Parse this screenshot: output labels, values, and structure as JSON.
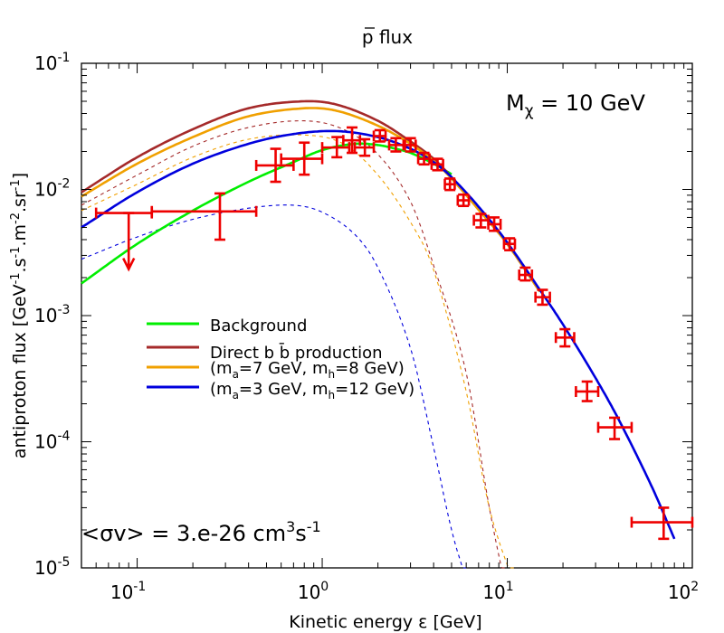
{
  "chart_data": {
    "type": "line",
    "title": "p flux",
    "title_bar_char": "p",
    "xlabel": "Kinetic energy ε [GeV]",
    "ylabel": "antiproton flux [GeV-1.s-1.m-2.sr-1]",
    "xscale": "log",
    "yscale": "log",
    "xlim": [
      0.05,
      100
    ],
    "ylim": [
      1e-05,
      0.1
    ],
    "x_ticks": [
      {
        "value": 0.1,
        "base": "10",
        "exp": "-1"
      },
      {
        "value": 1,
        "base": "10",
        "exp": "0"
      },
      {
        "value": 10,
        "base": "10",
        "exp": "1"
      },
      {
        "value": 100,
        "base": "10",
        "exp": "2"
      }
    ],
    "y_ticks": [
      {
        "value": 1e-05,
        "base": "10",
        "exp": "-5"
      },
      {
        "value": 0.0001,
        "base": "10",
        "exp": "-4"
      },
      {
        "value": 0.001,
        "base": "10",
        "exp": "-3"
      },
      {
        "value": 0.01,
        "base": "10",
        "exp": "-2"
      },
      {
        "value": 0.1,
        "base": "10",
        "exp": "-1"
      }
    ],
    "annotations": {
      "mass_label": "Mχ = 10 GeV",
      "cross_section": "<σv> = 3.e-26 cm3s-1"
    },
    "legend": {
      "placement": "center-left",
      "entries": [
        {
          "label": "Background",
          "color": "#00ee00"
        },
        {
          "label": "Direct b b̄ production",
          "color": "#a52a2a"
        },
        {
          "label": "(ma=7 GeV, mh=8 GeV)",
          "color": "#f0a000"
        },
        {
          "label": "(ma=3 GeV, mh=12 GeV)",
          "color": "#0000dd"
        }
      ]
    },
    "series": [
      {
        "name": "Background",
        "color": "#00ee00",
        "style": "solid",
        "x": [
          0.05,
          0.1,
          0.2,
          0.4,
          0.7,
          1.0,
          1.5,
          2.0,
          2.5,
          3,
          4,
          5
        ],
        "y": [
          0.0018,
          0.0037,
          0.0068,
          0.0115,
          0.0165,
          0.0205,
          0.023,
          0.0225,
          0.021,
          0.0195,
          0.016,
          0.0132
        ]
      },
      {
        "name": "Direct b b̄ production",
        "color": "#a52a2a",
        "style": "solid",
        "x": [
          0.05,
          0.1,
          0.2,
          0.4,
          0.8,
          1.2,
          2.0,
          3.0,
          4.0,
          5.0,
          7.0,
          10,
          15
        ],
        "y": [
          0.0095,
          0.018,
          0.03,
          0.044,
          0.05,
          0.047,
          0.035,
          0.024,
          0.0175,
          0.0125,
          0.007,
          0.0037,
          0.00155
        ]
      },
      {
        "name": "(ma=7 GeV, mh=8 GeV)",
        "color": "#f0a000",
        "style": "solid",
        "x": [
          0.05,
          0.1,
          0.2,
          0.4,
          0.8,
          1.2,
          2.0,
          3.0,
          4.0,
          5.0,
          7.0,
          10,
          15
        ],
        "y": [
          0.0088,
          0.016,
          0.026,
          0.038,
          0.044,
          0.042,
          0.032,
          0.023,
          0.0168,
          0.0122,
          0.0069,
          0.0037,
          0.00155
        ]
      },
      {
        "name": "(ma=3 GeV, mh=12 GeV)",
        "color": "#0000dd",
        "style": "solid",
        "x": [
          0.05,
          0.1,
          0.2,
          0.4,
          0.7,
          1.2,
          2.0,
          3.0,
          4.0,
          5.0,
          7.0,
          10,
          15,
          20,
          30,
          40,
          60,
          80
        ],
        "y": [
          0.005,
          0.0095,
          0.016,
          0.023,
          0.0275,
          0.029,
          0.026,
          0.021,
          0.0165,
          0.0125,
          0.0073,
          0.0038,
          0.0016,
          0.00085,
          0.00032,
          0.00015,
          4.5e-05,
          1.7e-05
        ]
      },
      {
        "name": "bb signal (brown dashed)",
        "color": "#a52a2a",
        "style": "dashed",
        "x": [
          0.05,
          0.1,
          0.2,
          0.4,
          0.8,
          1.3,
          2.0,
          3.0,
          4.0,
          6.0,
          8.0,
          10.0
        ],
        "y": [
          0.0075,
          0.013,
          0.022,
          0.031,
          0.035,
          0.03,
          0.019,
          0.008,
          0.0025,
          0.00035,
          3e-05,
          6e-06
        ]
      },
      {
        "name": "ma=7 signal (orange dashed)",
        "color": "#f0a000",
        "style": "dashed",
        "x": [
          0.05,
          0.1,
          0.2,
          0.4,
          0.8,
          1.3,
          2.0,
          3.0,
          4.0,
          6.0,
          8.0,
          11.0
        ],
        "y": [
          0.0068,
          0.011,
          0.018,
          0.025,
          0.027,
          0.023,
          0.013,
          0.0055,
          0.0023,
          0.00025,
          3e-05,
          7e-06
        ]
      },
      {
        "name": "ma=3 signal (blue dashed)",
        "color": "#0000dd",
        "style": "dashed",
        "x": [
          0.05,
          0.1,
          0.2,
          0.4,
          0.7,
          1.0,
          1.5,
          2.0,
          3.0,
          4.0,
          5.0,
          6.0
        ],
        "y": [
          0.0028,
          0.0042,
          0.0058,
          0.0071,
          0.0075,
          0.0066,
          0.0044,
          0.0024,
          0.00055,
          9e-05,
          2e-05,
          8e-06
        ]
      }
    ],
    "data_points": [
      {
        "x": 0.09,
        "xerr": [
          0.06,
          0.12
        ],
        "y": 0.0065,
        "yerr": [
          0.0065,
          0.0065
        ],
        "upper_limit": true
      },
      {
        "x": 0.28,
        "xerr": [
          0.12,
          0.44
        ],
        "y": 0.0067,
        "yerr": [
          0.004,
          0.0093
        ]
      },
      {
        "x": 0.56,
        "xerr": [
          0.44,
          0.7
        ],
        "y": 0.0155,
        "yerr": [
          0.0115,
          0.021
        ]
      },
      {
        "x": 0.8,
        "xerr": [
          0.6,
          1.0
        ],
        "y": 0.0175,
        "yerr": [
          0.0131,
          0.0235
        ]
      },
      {
        "x": 1.2,
        "xerr": [
          1.0,
          1.4
        ],
        "y": 0.0215,
        "yerr": [
          0.018,
          0.026
        ]
      },
      {
        "x": 1.45,
        "xerr": [
          1.3,
          1.6
        ],
        "y": 0.0245,
        "yerr": [
          0.0195,
          0.031
        ]
      },
      {
        "x": 1.7,
        "xerr": [
          1.5,
          1.9
        ],
        "y": 0.0215,
        "yerr": [
          0.0185,
          0.025
        ]
      },
      {
        "x": 2.05,
        "xerr": [
          1.9,
          2.2
        ],
        "y": 0.0265,
        "yerr": [
          0.024,
          0.0295
        ]
      },
      {
        "x": 2.5,
        "xerr": [
          2.3,
          2.75
        ],
        "y": 0.0225,
        "yerr": [
          0.02,
          0.0255
        ]
      },
      {
        "x": 3.0,
        "xerr": [
          2.8,
          3.2
        ],
        "y": 0.0225,
        "yerr": [
          0.02,
          0.0255
        ]
      },
      {
        "x": 3.55,
        "xerr": [
          3.3,
          3.8
        ],
        "y": 0.0175,
        "yerr": [
          0.0158,
          0.0195
        ]
      },
      {
        "x": 4.2,
        "xerr": [
          3.9,
          4.5
        ],
        "y": 0.0158,
        "yerr": [
          0.0142,
          0.0175
        ]
      },
      {
        "x": 4.9,
        "xerr": [
          4.6,
          5.2
        ],
        "y": 0.011,
        "yerr": [
          0.0099,
          0.0122
        ]
      },
      {
        "x": 5.8,
        "xerr": [
          5.4,
          6.2
        ],
        "y": 0.0082,
        "yerr": [
          0.0074,
          0.0091
        ]
      },
      {
        "x": 7.2,
        "xerr": [
          6.6,
          7.9
        ],
        "y": 0.0057,
        "yerr": [
          0.005,
          0.0064
        ]
      },
      {
        "x": 8.5,
        "xerr": [
          7.9,
          9.2
        ],
        "y": 0.0053,
        "yerr": [
          0.0047,
          0.006
        ]
      },
      {
        "x": 10.3,
        "xerr": [
          9.6,
          11.0
        ],
        "y": 0.0037,
        "yerr": [
          0.0033,
          0.0041
        ]
      },
      {
        "x": 12.5,
        "xerr": [
          11.6,
          13.6
        ],
        "y": 0.0021,
        "yerr": [
          0.0019,
          0.0024
        ]
      },
      {
        "x": 15.5,
        "xerr": [
          14.2,
          17.0
        ],
        "y": 0.0014,
        "yerr": [
          0.00122,
          0.0016
        ]
      },
      {
        "x": 20.5,
        "xerr": [
          18.3,
          23.0
        ],
        "y": 0.00067,
        "yerr": [
          0.00057,
          0.00078
        ]
      },
      {
        "x": 27.0,
        "xerr": [
          23.5,
          31.0
        ],
        "y": 0.00025,
        "yerr": [
          0.00021,
          0.0003
        ]
      },
      {
        "x": 38.0,
        "xerr": [
          31.0,
          47.0
        ],
        "y": 0.00013,
        "yerr": [
          0.000105,
          0.000155
        ]
      },
      {
        "x": 70.0,
        "xerr": [
          47.0,
          100.0
        ],
        "y": 2.3e-05,
        "yerr": [
          1.7e-05,
          3e-05
        ]
      }
    ],
    "error_color": "#ee0000"
  }
}
